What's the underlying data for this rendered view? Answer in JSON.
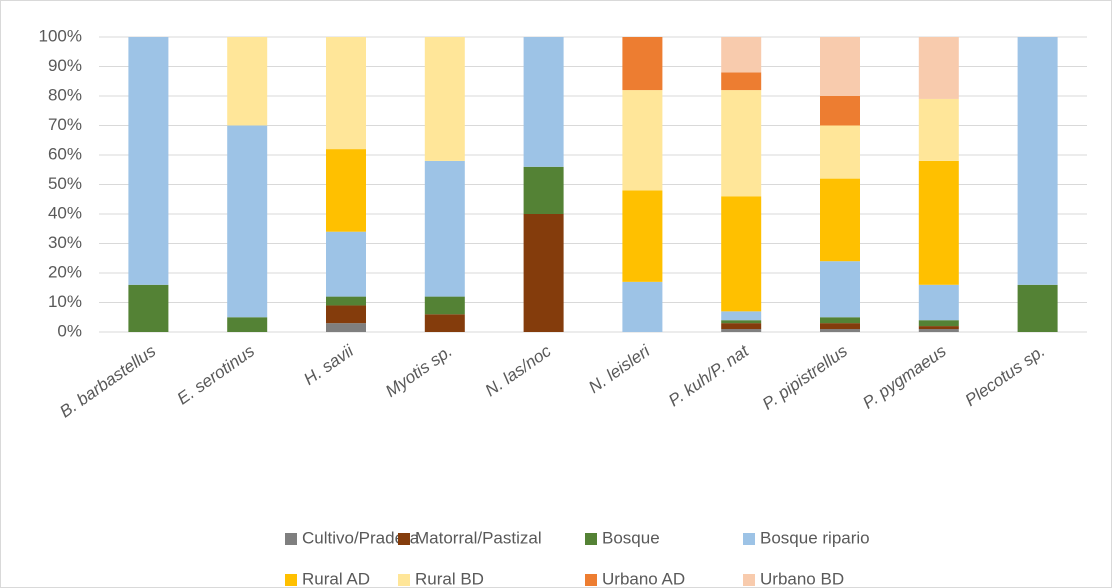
{
  "chart_data": {
    "type": "stacked_bar",
    "categories": [
      "B. barbastellus",
      "E. serotinus",
      "H. savii",
      "Myotis sp.",
      "N. las/noc",
      "N. leisleri",
      "P. kuh/P. nat",
      "P. pipistrellus",
      "P. pygmaeus",
      "Plecotus sp."
    ],
    "series": [
      {
        "name": "Cultivo/Pradera",
        "color": "#7f7f7f",
        "values": [
          0,
          0,
          3,
          0,
          0,
          0,
          1,
          1,
          1,
          0
        ]
      },
      {
        "name": "Matorral/Pastizal",
        "color": "#843c0c",
        "values": [
          0,
          0,
          6,
          6,
          40,
          0,
          2,
          2,
          1,
          0
        ]
      },
      {
        "name": "Bosque",
        "color": "#548235",
        "values": [
          16,
          5,
          3,
          6,
          16,
          0,
          1,
          2,
          2,
          16
        ]
      },
      {
        "name": "Bosque ripario",
        "color": "#9dc3e6",
        "values": [
          84,
          65,
          22,
          46,
          44,
          17,
          3,
          19,
          12,
          84
        ]
      },
      {
        "name": "Rural AD",
        "color": "#ffc000",
        "values": [
          0,
          0,
          28,
          0,
          0,
          31,
          39,
          28,
          42,
          0
        ]
      },
      {
        "name": "Rural BD",
        "color": "#ffe699",
        "values": [
          0,
          30,
          38,
          42,
          0,
          34,
          36,
          18,
          21,
          0
        ]
      },
      {
        "name": "Urbano AD",
        "color": "#ed7d31",
        "values": [
          0,
          0,
          0,
          0,
          0,
          18,
          6,
          10,
          0,
          0
        ]
      },
      {
        "name": "Urbano BD",
        "color": "#f8cbad",
        "values": [
          0,
          0,
          0,
          0,
          0,
          0,
          12,
          20,
          21,
          0
        ]
      }
    ],
    "ylim": [
      0,
      100
    ],
    "yticks": [
      {
        "value": 0,
        "label": "0%"
      },
      {
        "value": 10,
        "label": "10%"
      },
      {
        "value": 20,
        "label": "20%"
      },
      {
        "value": 30,
        "label": "30%"
      },
      {
        "value": 40,
        "label": "40%"
      },
      {
        "value": 50,
        "label": "50%"
      },
      {
        "value": 60,
        "label": "60%"
      },
      {
        "value": 70,
        "label": "70%"
      },
      {
        "value": 80,
        "label": "80%"
      },
      {
        "value": 90,
        "label": "90%"
      },
      {
        "value": 100,
        "label": "100%"
      }
    ],
    "grid": true
  }
}
